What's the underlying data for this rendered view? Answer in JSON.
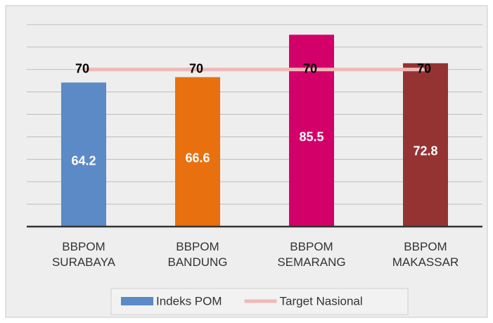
{
  "chart_data": {
    "type": "bar",
    "categories": [
      "BBPOM SURABAYA",
      "BBPOM BANDUNG",
      "BBPOM SEMARANG",
      "BBPOM MAKASSAR"
    ],
    "series": [
      {
        "name": "Indeks POM",
        "type": "bar",
        "color": "#5b8ac6",
        "colors": [
          "#5b8ac6",
          "#e8700e",
          "#d4006a",
          "#953333"
        ],
        "values": [
          64.2,
          66.6,
          85.5,
          72.8
        ]
      },
      {
        "name": "Target Nasional",
        "type": "line",
        "color": "#efb9b7",
        "values": [
          70,
          70,
          70,
          70
        ]
      }
    ],
    "ylim": [
      0,
      90
    ],
    "yticks": [
      0,
      10,
      20,
      30,
      40,
      50,
      60,
      70,
      80,
      90
    ],
    "grid": true,
    "legend": "bottom"
  }
}
